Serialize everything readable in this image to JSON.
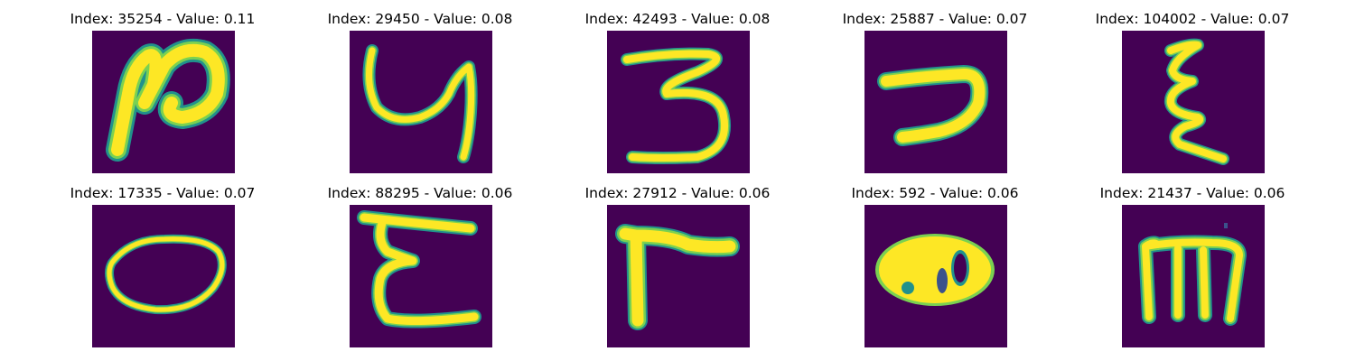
{
  "colors": {
    "background": "#440154",
    "stroke_core": "#fde725",
    "stroke_mid": "#7ad151",
    "stroke_edge": "#21918c"
  },
  "panels": [
    {
      "title": "Index: 35254 - Value: 0.11"
    },
    {
      "title": "Index: 29450 - Value: 0.08"
    },
    {
      "title": "Index: 42493 - Value: 0.08"
    },
    {
      "title": "Index: 25887 - Value: 0.07"
    },
    {
      "title": "Index: 104002 - Value: 0.07"
    },
    {
      "title": "Index: 17335 - Value: 0.07"
    },
    {
      "title": "Index: 88295 - Value: 0.06"
    },
    {
      "title": "Index: 27912 - Value: 0.06"
    },
    {
      "title": "Index: 592 - Value: 0.06"
    },
    {
      "title": "Index: 21437 - Value: 0.06"
    }
  ]
}
